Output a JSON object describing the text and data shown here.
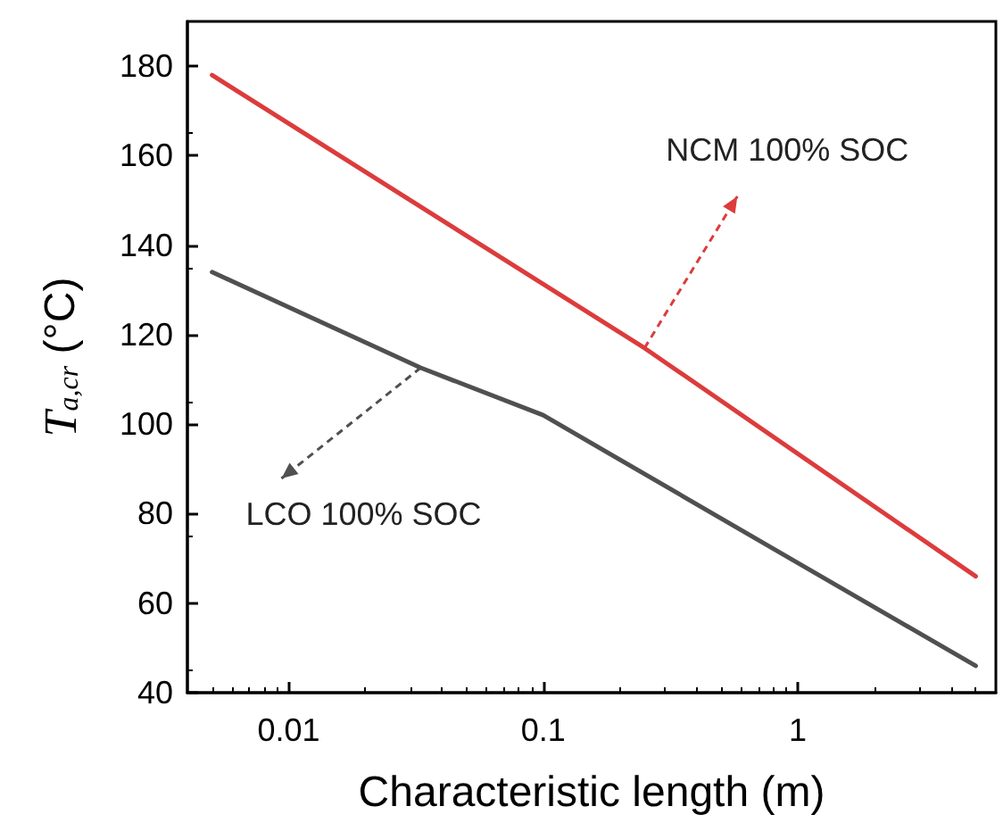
{
  "chart_data": {
    "type": "line",
    "xlabel": "Characteristic length (m)",
    "ylabel": "T$_{a,cr}$ (°C)",
    "log": "x",
    "grid": false,
    "marker": "none",
    "line_style": "solid",
    "xlim": [
      0.004,
      6
    ],
    "xticks": [
      0.01,
      0.1,
      1
    ],
    "ylim": [
      40,
      190
    ],
    "yticks": [
      40,
      60,
      80,
      100,
      120,
      140,
      160,
      180
    ],
    "series": [
      {
        "color": "#dc3c3c",
        "x": [
          0.005,
          0.25,
          5
        ],
        "values": [
          178,
          117,
          66
        ]
      },
      {
        "color": "#505050",
        "x": [
          0.005,
          0.033,
          0.1,
          1,
          5
        ],
        "values": [
          134,
          112.6,
          102,
          69,
          46
        ]
      }
    ],
    "annotations": [
      {
        "text": "NCM 100% SOC",
        "x": 0.25,
        "y": 117
      },
      {
        "text": "LCO 100% SOC",
        "x": 0.033,
        "y": 112.6
      }
    ]
  }
}
